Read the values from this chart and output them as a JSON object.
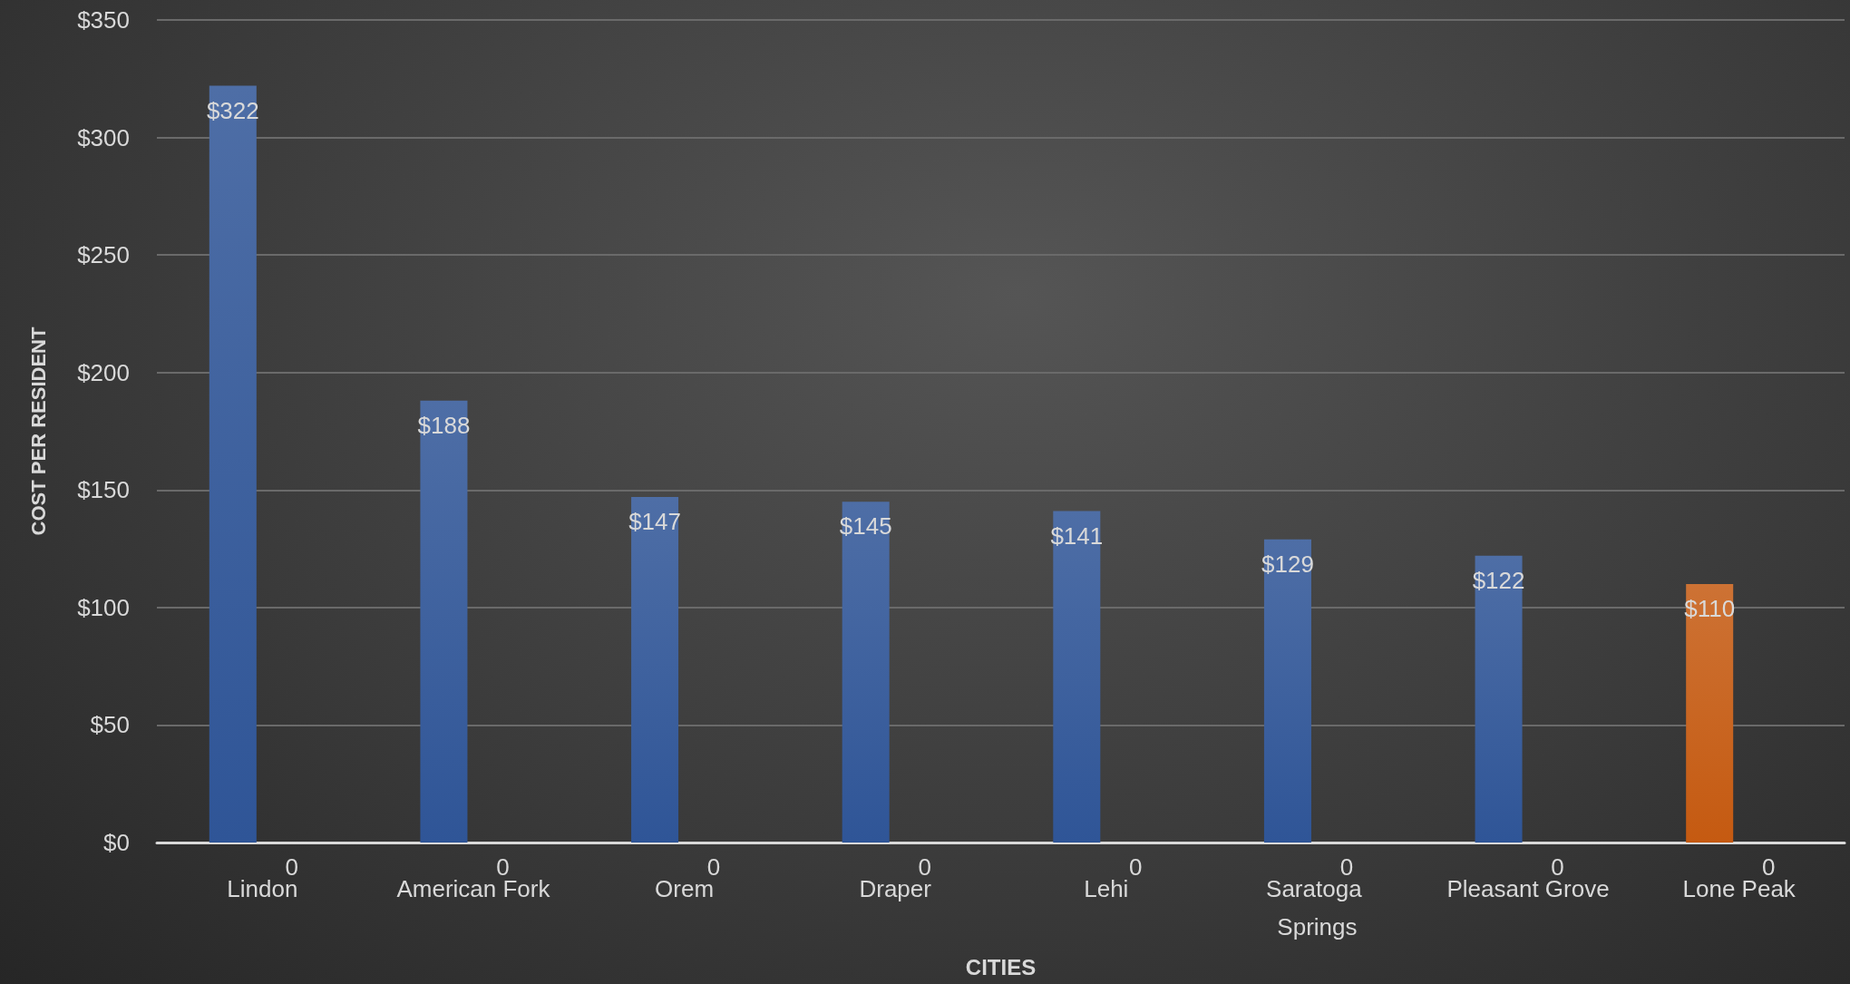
{
  "chart_data": {
    "type": "bar",
    "xlabel": "CITIES",
    "ylabel": "COST PER RESIDENT",
    "categories": [
      "Lindon",
      "American Fork",
      "Orem",
      "Draper",
      "Lehi",
      "Saratoga Springs",
      "Pleasant Grove",
      "Lone Peak"
    ],
    "series": [
      {
        "values": [
          322,
          188,
          147,
          145,
          141,
          129,
          122,
          110
        ],
        "colors": [
          "#2f5597",
          "#2f5597",
          "#2f5597",
          "#2f5597",
          "#2f5597",
          "#2f5597",
          "#2f5597",
          "#c55a11"
        ],
        "value_labels": [
          "$322",
          "$188",
          "$147",
          "$145",
          "$141",
          "$129",
          "$122",
          "$110"
        ]
      },
      {
        "values": [
          0,
          0,
          0,
          0,
          0,
          0,
          0,
          0
        ],
        "value_labels": [
          "0",
          "0",
          "0",
          "0",
          "0",
          "0",
          "0",
          "0"
        ]
      }
    ],
    "ylim": [
      0,
      350
    ],
    "yticks": [
      {
        "value": 0,
        "label": "$0"
      },
      {
        "value": 50,
        "label": "$50"
      },
      {
        "value": 100,
        "label": "$100"
      },
      {
        "value": 150,
        "label": "$150"
      },
      {
        "value": 200,
        "label": "$200"
      },
      {
        "value": 250,
        "label": "$250"
      },
      {
        "value": 300,
        "label": "$300"
      },
      {
        "value": 350,
        "label": "$350"
      }
    ],
    "grid": "y",
    "legend": false
  }
}
